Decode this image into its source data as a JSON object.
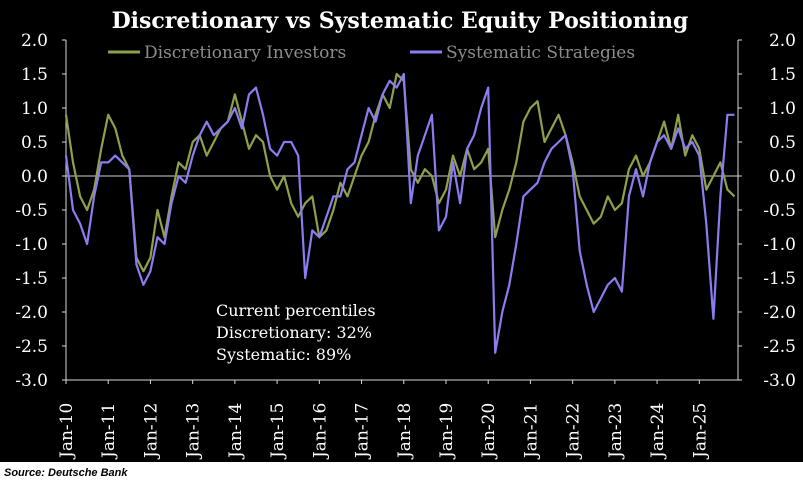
{
  "chart_data": {
    "type": "line",
    "title": "Discretionary  vs Systematic Equity Positioning",
    "xlabel": "",
    "ylabel": "",
    "ylim": [
      -3.0,
      2.0
    ],
    "yticks": [
      "2.0",
      "1.5",
      "1.0",
      "0.5",
      "0.0",
      "-0.5",
      "-1.0",
      "-1.5",
      "-2.0",
      "-2.5",
      "-3.0"
    ],
    "y_axis_both_sides": true,
    "xticks": [
      "Jan-10",
      "Jan-11",
      "Jan-12",
      "Jan-13",
      "Jan-14",
      "Jan-15",
      "Jan-16",
      "Jan-17",
      "Jan-18",
      "Jan-19",
      "Jan-20",
      "Jan-21",
      "Jan-22",
      "Jan-23",
      "Jan-24",
      "Jan-25"
    ],
    "x_range": [
      "2010-01",
      "2025-12"
    ],
    "zero_line": true,
    "legend_position": "top",
    "background": "#000000",
    "series": [
      {
        "name": "Discretionary Investors",
        "color": "#8ea14a",
        "points": [
          [
            "2010-01",
            0.9
          ],
          [
            "2010-03",
            0.2
          ],
          [
            "2010-05",
            -0.3
          ],
          [
            "2010-07",
            -0.5
          ],
          [
            "2010-09",
            -0.2
          ],
          [
            "2010-11",
            0.4
          ],
          [
            "2011-01",
            0.9
          ],
          [
            "2011-03",
            0.7
          ],
          [
            "2011-05",
            0.3
          ],
          [
            "2011-07",
            0.1
          ],
          [
            "2011-09",
            -1.2
          ],
          [
            "2011-11",
            -1.4
          ],
          [
            "2012-01",
            -1.2
          ],
          [
            "2012-03",
            -0.5
          ],
          [
            "2012-05",
            -0.9
          ],
          [
            "2012-07",
            -0.3
          ],
          [
            "2012-09",
            0.2
          ],
          [
            "2012-11",
            0.1
          ],
          [
            "2013-01",
            0.5
          ],
          [
            "2013-03",
            0.6
          ],
          [
            "2013-05",
            0.3
          ],
          [
            "2013-07",
            0.5
          ],
          [
            "2013-09",
            0.7
          ],
          [
            "2013-11",
            0.8
          ],
          [
            "2014-01",
            1.2
          ],
          [
            "2014-03",
            0.8
          ],
          [
            "2014-05",
            0.4
          ],
          [
            "2014-07",
            0.6
          ],
          [
            "2014-09",
            0.5
          ],
          [
            "2014-11",
            0.0
          ],
          [
            "2015-01",
            -0.2
          ],
          [
            "2015-03",
            0.0
          ],
          [
            "2015-05",
            -0.4
          ],
          [
            "2015-07",
            -0.6
          ],
          [
            "2015-09",
            -0.4
          ],
          [
            "2015-11",
            -0.3
          ],
          [
            "2016-01",
            -0.9
          ],
          [
            "2016-03",
            -0.8
          ],
          [
            "2016-05",
            -0.5
          ],
          [
            "2016-07",
            -0.1
          ],
          [
            "2016-09",
            -0.3
          ],
          [
            "2016-11",
            0.0
          ],
          [
            "2017-01",
            0.3
          ],
          [
            "2017-03",
            0.5
          ],
          [
            "2017-05",
            0.9
          ],
          [
            "2017-07",
            1.2
          ],
          [
            "2017-09",
            1.0
          ],
          [
            "2017-11",
            1.5
          ],
          [
            "2018-01",
            1.4
          ],
          [
            "2018-03",
            0.1
          ],
          [
            "2018-05",
            -0.1
          ],
          [
            "2018-07",
            0.1
          ],
          [
            "2018-09",
            0.0
          ],
          [
            "2018-11",
            -0.4
          ],
          [
            "2019-01",
            -0.2
          ],
          [
            "2019-03",
            0.3
          ],
          [
            "2019-05",
            0.0
          ],
          [
            "2019-07",
            0.4
          ],
          [
            "2019-09",
            0.1
          ],
          [
            "2019-11",
            0.2
          ],
          [
            "2020-01",
            0.4
          ],
          [
            "2020-03",
            -0.9
          ],
          [
            "2020-05",
            -0.5
          ],
          [
            "2020-07",
            -0.2
          ],
          [
            "2020-09",
            0.2
          ],
          [
            "2020-11",
            0.8
          ],
          [
            "2021-01",
            1.0
          ],
          [
            "2021-03",
            1.1
          ],
          [
            "2021-05",
            0.5
          ],
          [
            "2021-07",
            0.7
          ],
          [
            "2021-09",
            0.9
          ],
          [
            "2021-11",
            0.6
          ],
          [
            "2022-01",
            0.2
          ],
          [
            "2022-03",
            -0.3
          ],
          [
            "2022-05",
            -0.5
          ],
          [
            "2022-07",
            -0.7
          ],
          [
            "2022-09",
            -0.6
          ],
          [
            "2022-11",
            -0.3
          ],
          [
            "2023-01",
            -0.5
          ],
          [
            "2023-03",
            -0.4
          ],
          [
            "2023-05",
            0.1
          ],
          [
            "2023-07",
            0.3
          ],
          [
            "2023-09",
            0.0
          ],
          [
            "2023-11",
            0.2
          ],
          [
            "2024-01",
            0.5
          ],
          [
            "2024-03",
            0.8
          ],
          [
            "2024-05",
            0.4
          ],
          [
            "2024-07",
            0.9
          ],
          [
            "2024-09",
            0.3
          ],
          [
            "2024-11",
            0.6
          ],
          [
            "2025-01",
            0.4
          ],
          [
            "2025-03",
            -0.2
          ],
          [
            "2025-05",
            0.0
          ],
          [
            "2025-07",
            0.2
          ],
          [
            "2025-09",
            -0.2
          ],
          [
            "2025-11",
            -0.3
          ]
        ]
      },
      {
        "name": "Systematic Strategies",
        "color": "#8a7df0",
        "points": [
          [
            "2010-01",
            0.3
          ],
          [
            "2010-03",
            -0.5
          ],
          [
            "2010-05",
            -0.7
          ],
          [
            "2010-07",
            -1.0
          ],
          [
            "2010-09",
            -0.3
          ],
          [
            "2010-11",
            0.2
          ],
          [
            "2011-01",
            0.2
          ],
          [
            "2011-03",
            0.3
          ],
          [
            "2011-05",
            0.2
          ],
          [
            "2011-07",
            0.1
          ],
          [
            "2011-09",
            -1.3
          ],
          [
            "2011-11",
            -1.6
          ],
          [
            "2012-01",
            -1.4
          ],
          [
            "2012-03",
            -0.9
          ],
          [
            "2012-05",
            -1.0
          ],
          [
            "2012-07",
            -0.4
          ],
          [
            "2012-09",
            0.0
          ],
          [
            "2012-11",
            -0.1
          ],
          [
            "2013-01",
            0.3
          ],
          [
            "2013-03",
            0.6
          ],
          [
            "2013-05",
            0.8
          ],
          [
            "2013-07",
            0.6
          ],
          [
            "2013-09",
            0.7
          ],
          [
            "2013-11",
            0.8
          ],
          [
            "2014-01",
            1.0
          ],
          [
            "2014-03",
            0.7
          ],
          [
            "2014-05",
            1.2
          ],
          [
            "2014-07",
            1.3
          ],
          [
            "2014-09",
            0.9
          ],
          [
            "2014-11",
            0.4
          ],
          [
            "2015-01",
            0.3
          ],
          [
            "2015-03",
            0.5
          ],
          [
            "2015-05",
            0.5
          ],
          [
            "2015-07",
            0.3
          ],
          [
            "2015-09",
            -1.5
          ],
          [
            "2015-11",
            -0.8
          ],
          [
            "2016-01",
            -0.9
          ],
          [
            "2016-03",
            -0.6
          ],
          [
            "2016-05",
            -0.3
          ],
          [
            "2016-07",
            -0.3
          ],
          [
            "2016-09",
            0.1
          ],
          [
            "2016-11",
            0.2
          ],
          [
            "2017-01",
            0.6
          ],
          [
            "2017-03",
            1.0
          ],
          [
            "2017-05",
            0.8
          ],
          [
            "2017-07",
            1.2
          ],
          [
            "2017-09",
            1.4
          ],
          [
            "2017-11",
            1.3
          ],
          [
            "2018-01",
            1.5
          ],
          [
            "2018-03",
            -0.4
          ],
          [
            "2018-05",
            0.3
          ],
          [
            "2018-07",
            0.6
          ],
          [
            "2018-09",
            0.9
          ],
          [
            "2018-11",
            -0.8
          ],
          [
            "2019-01",
            -0.6
          ],
          [
            "2019-03",
            0.2
          ],
          [
            "2019-05",
            -0.4
          ],
          [
            "2019-07",
            0.4
          ],
          [
            "2019-09",
            0.6
          ],
          [
            "2019-11",
            1.0
          ],
          [
            "2020-01",
            1.3
          ],
          [
            "2020-03",
            -2.6
          ],
          [
            "2020-05",
            -2.0
          ],
          [
            "2020-07",
            -1.6
          ],
          [
            "2020-09",
            -1.0
          ],
          [
            "2020-11",
            -0.3
          ],
          [
            "2021-01",
            -0.2
          ],
          [
            "2021-03",
            -0.1
          ],
          [
            "2021-05",
            0.2
          ],
          [
            "2021-07",
            0.4
          ],
          [
            "2021-09",
            0.5
          ],
          [
            "2021-11",
            0.6
          ],
          [
            "2022-01",
            0.1
          ],
          [
            "2022-03",
            -1.1
          ],
          [
            "2022-05",
            -1.6
          ],
          [
            "2022-07",
            -2.0
          ],
          [
            "2022-09",
            -1.8
          ],
          [
            "2022-11",
            -1.6
          ],
          [
            "2023-01",
            -1.5
          ],
          [
            "2023-03",
            -1.7
          ],
          [
            "2023-05",
            -0.3
          ],
          [
            "2023-07",
            0.1
          ],
          [
            "2023-09",
            -0.3
          ],
          [
            "2023-11",
            0.2
          ],
          [
            "2024-01",
            0.5
          ],
          [
            "2024-03",
            0.6
          ],
          [
            "2024-05",
            0.4
          ],
          [
            "2024-07",
            0.7
          ],
          [
            "2024-09",
            0.4
          ],
          [
            "2024-11",
            0.5
          ],
          [
            "2025-01",
            0.3
          ],
          [
            "2025-03",
            -0.7
          ],
          [
            "2025-05",
            -2.1
          ],
          [
            "2025-07",
            -0.3
          ],
          [
            "2025-09",
            0.9
          ],
          [
            "2025-11",
            0.9
          ]
        ]
      }
    ],
    "annotation": {
      "title": "Current percentiles",
      "line1": "Discretionary: 32%",
      "line2": "Systematic: 89%"
    }
  },
  "source": "Source: Deutsche Bank"
}
